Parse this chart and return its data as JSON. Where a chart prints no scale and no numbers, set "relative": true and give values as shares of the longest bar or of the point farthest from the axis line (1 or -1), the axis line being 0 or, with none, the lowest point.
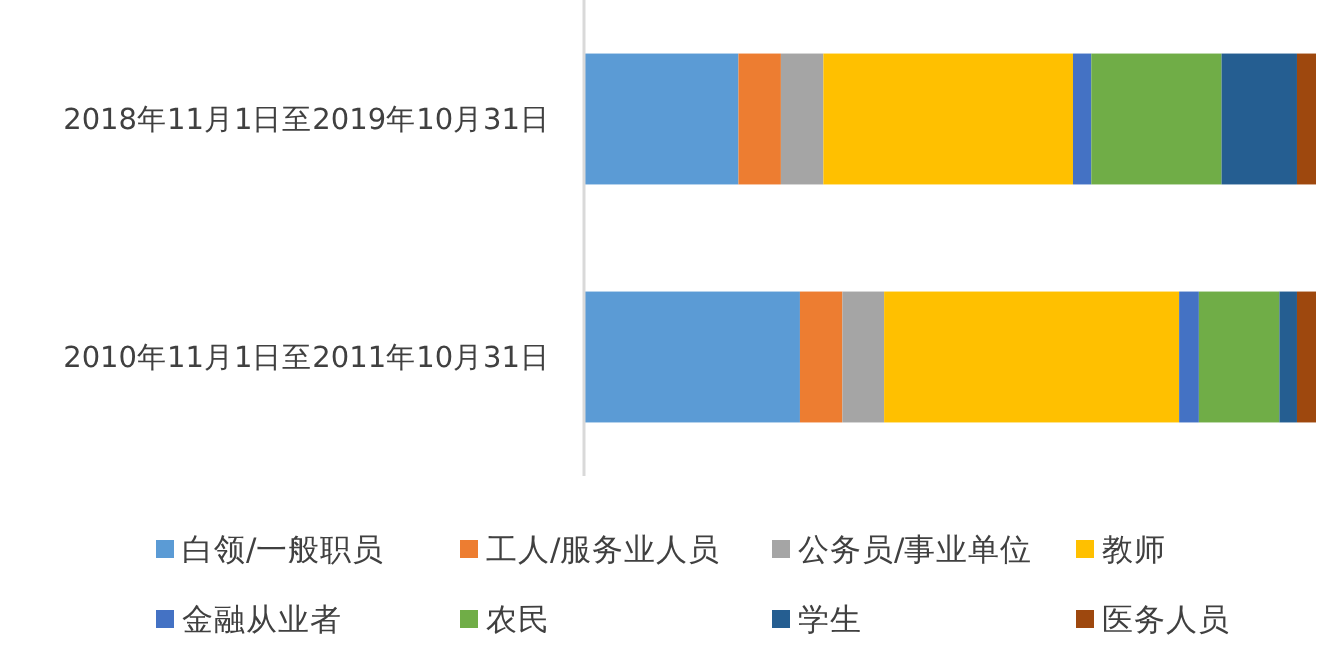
{
  "chart_data": {
    "type": "bar",
    "orientation": "horizontal",
    "stacked": true,
    "relative": true,
    "legend": "bottom",
    "categories": [
      "2018年11月1日至2019年10月31日",
      "2010年11月1日至2011年10月31日"
    ],
    "series": [
      {
        "name": "白领/一般职员",
        "color": "#5b9bd5",
        "values": [
          0.211,
          0.295
        ]
      },
      {
        "name": "工人/服务业人员",
        "color": "#ed7d31",
        "values": [
          0.058,
          0.058
        ]
      },
      {
        "name": "公务员/事业单位",
        "color": "#a5a5a5",
        "values": [
          0.058,
          0.057
        ]
      },
      {
        "name": "教师",
        "color": "#ffc000",
        "values": [
          0.341,
          0.403
        ]
      },
      {
        "name": "金融从业者",
        "color": "#4472c4",
        "values": [
          0.025,
          0.027
        ]
      },
      {
        "name": "农民",
        "color": "#70ad47",
        "values": [
          0.178,
          0.11
        ]
      },
      {
        "name": "学生",
        "color": "#255e91",
        "values": [
          0.103,
          0.024
        ]
      },
      {
        "name": "医务人员",
        "color": "#9e480e",
        "values": [
          0.026,
          0.026
        ]
      }
    ]
  }
}
